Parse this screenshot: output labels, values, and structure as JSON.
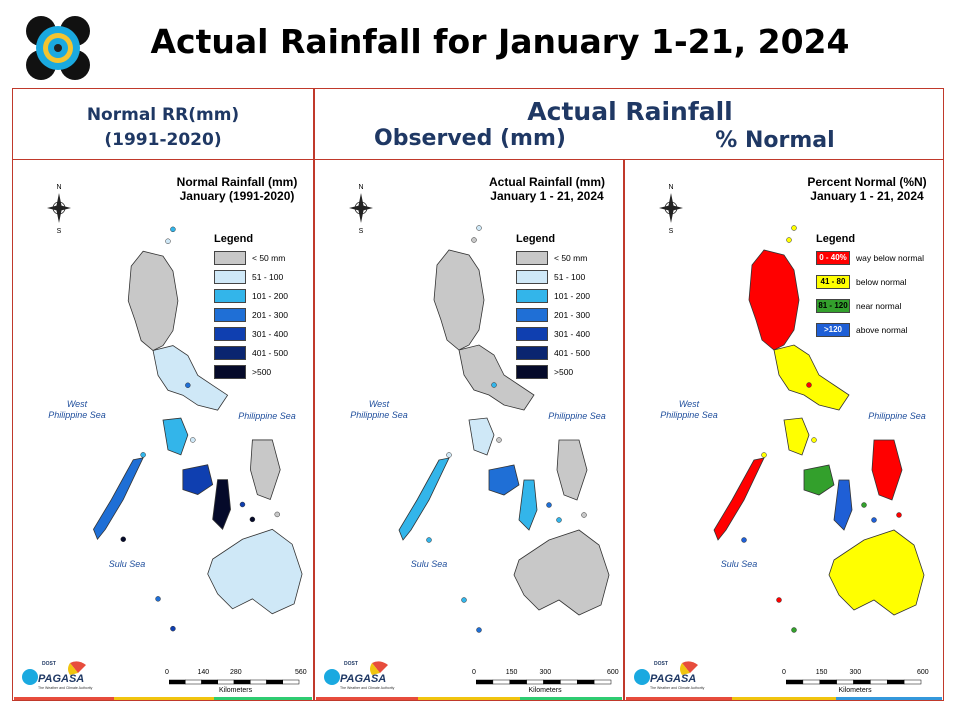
{
  "title": "Actual Rainfall for January 1-21, 2024",
  "headers": {
    "normal_line1": "Normal RR(mm)",
    "normal_line2": "(1991-2020)",
    "actual": "Actual Rainfall",
    "observed": "Observed (mm)",
    "percent": "% Normal"
  },
  "colors": {
    "frame": "#c0392b",
    "header_text": "#1f3864",
    "sea_text": "#1f4e9c"
  },
  "panels": [
    {
      "map_title_1": "Normal Rainfall (mm)",
      "map_title_2": "January (1991-2020)",
      "legend_title": "Legend",
      "legend": [
        {
          "label": "< 50 mm",
          "color": "#c8c8c8"
        },
        {
          "label": "51 - 100",
          "color": "#cfe8f7"
        },
        {
          "label": "101 - 200",
          "color": "#33b5ea"
        },
        {
          "label": "201 - 300",
          "color": "#1f6fd6"
        },
        {
          "label": "301 - 400",
          "color": "#0f3fb0"
        },
        {
          "label": "401 - 500",
          "color": "#0a2570"
        },
        {
          "label": ">500",
          "color": "#050a2a"
        }
      ],
      "sea_west_1": "West",
      "sea_west_2": "Philippine Sea",
      "sea_east": "Philippine Sea",
      "sea_south": "Sulu Sea",
      "scale_ticks": [
        "0",
        "140",
        "280",
        "560"
      ],
      "scale_unit": "Kilometers",
      "fill": [
        "#c8c8c8",
        "#cfe8f7",
        "#33b5ea",
        "#1f6fd6",
        "#0f3fb0",
        "#050a2a"
      ]
    },
    {
      "map_title_1": "Actual Rainfall (mm)",
      "map_title_2": "January 1 - 21, 2024",
      "legend_title": "Legend",
      "legend": [
        {
          "label": "< 50 mm",
          "color": "#c8c8c8"
        },
        {
          "label": "51 - 100",
          "color": "#cfe8f7"
        },
        {
          "label": "101 - 200",
          "color": "#33b5ea"
        },
        {
          "label": "201 - 300",
          "color": "#1f6fd6"
        },
        {
          "label": "301 - 400",
          "color": "#0f3fb0"
        },
        {
          "label": "401 - 500",
          "color": "#0a2570"
        },
        {
          "label": ">500",
          "color": "#050a2a"
        }
      ],
      "sea_west_1": "West",
      "sea_west_2": "Philippine Sea",
      "sea_east": "Philippine Sea",
      "sea_south": "Sulu Sea",
      "scale_ticks": [
        "0",
        "150",
        "300",
        "600"
      ],
      "scale_unit": "Kilometers",
      "fill": [
        "#c8c8c8",
        "#c8c8c8",
        "#cfe8f7",
        "#33b5ea",
        "#1f6fd6",
        "#33b5ea"
      ]
    },
    {
      "map_title_1": "Percent Normal (%N)",
      "map_title_2": "January 1 - 21, 2024",
      "legend_title": "Legend",
      "legend": [
        {
          "swatch": "0 - 40%",
          "label": "way below normal",
          "color": "#ff0000",
          "text_color": "#ffffff"
        },
        {
          "swatch": "41 - 80",
          "label": "below normal",
          "color": "#ffff00",
          "text_color": "#000000"
        },
        {
          "swatch": "81 - 120",
          "label": "near normal",
          "color": "#33a02c",
          "text_color": "#000000"
        },
        {
          "swatch": ">120",
          "label": "above normal",
          "color": "#1f5fd6",
          "text_color": "#ffffff"
        }
      ],
      "sea_west_1": "West",
      "sea_west_2": "Philippine Sea",
      "sea_east": "Philippine Sea",
      "sea_south": "Sulu Sea",
      "scale_ticks": [
        "0",
        "150",
        "300",
        "600"
      ],
      "scale_unit": "Kilometers",
      "fill": [
        "#ff0000",
        "#ffff00",
        "#ffff00",
        "#ff0000",
        "#33a02c",
        "#1f5fd6"
      ]
    }
  ],
  "footer_logo": {
    "line1": "DOST",
    "line2": "PAGASA",
    "tagline": "The Weather and Climate Authority"
  }
}
